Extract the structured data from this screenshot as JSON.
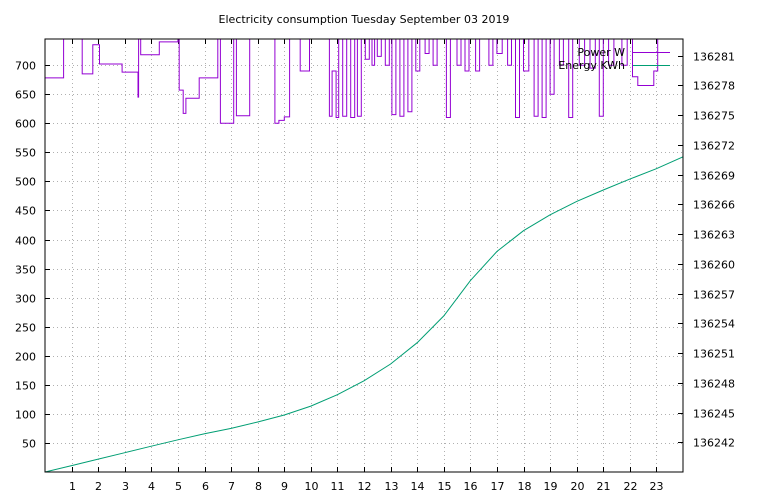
{
  "chart_data": {
    "type": "line",
    "title": "Electricity consumption Tuesday September 03 2019",
    "xlabel": "",
    "ylabel": "",
    "y2label": "",
    "xlim": [
      0,
      24
    ],
    "ylim": [
      0,
      745
    ],
    "y2lim": [
      136239.0,
      136282.69
    ],
    "xticks": [
      1,
      2,
      3,
      4,
      5,
      6,
      7,
      8,
      9,
      10,
      11,
      12,
      13,
      14,
      15,
      16,
      17,
      18,
      19,
      20,
      21,
      22,
      23
    ],
    "yticks": [
      50,
      100,
      150,
      200,
      250,
      300,
      350,
      400,
      450,
      500,
      550,
      600,
      650,
      700
    ],
    "y2ticks": [
      136242,
      136245,
      136248,
      136251,
      136254,
      136257,
      136260,
      136263,
      136266,
      136269,
      136272,
      136275,
      136278,
      136281
    ],
    "grid": true,
    "legend_position": "top-right",
    "series": [
      {
        "name": "Power W",
        "axis": "left",
        "color": "#9400d3",
        "step": true,
        "clipped_top": true,
        "points": [
          [
            0,
            678
          ],
          [
            0.7,
            760
          ],
          [
            1.4,
            685
          ],
          [
            1.8,
            735
          ],
          [
            2.05,
            702
          ],
          [
            2.9,
            688
          ],
          [
            3.5,
            645
          ],
          [
            3.52,
            760
          ],
          [
            3.6,
            718
          ],
          [
            4.3,
            740
          ],
          [
            5.0,
            760
          ],
          [
            5.05,
            657
          ],
          [
            5.2,
            617
          ],
          [
            5.3,
            643
          ],
          [
            5.8,
            678
          ],
          [
            6.5,
            760
          ],
          [
            6.6,
            600
          ],
          [
            7.1,
            760
          ],
          [
            7.2,
            613
          ],
          [
            7.7,
            760
          ],
          [
            8.65,
            600
          ],
          [
            8.8,
            605
          ],
          [
            9.0,
            611
          ],
          [
            9.2,
            760
          ],
          [
            9.6,
            690
          ],
          [
            9.95,
            760
          ],
          [
            10.7,
            612
          ],
          [
            10.8,
            690
          ],
          [
            10.95,
            610
          ],
          [
            11.05,
            760
          ],
          [
            11.2,
            612
          ],
          [
            11.35,
            760
          ],
          [
            11.5,
            610
          ],
          [
            11.65,
            760
          ],
          [
            11.75,
            612
          ],
          [
            11.9,
            760
          ],
          [
            12.05,
            710
          ],
          [
            12.2,
            760
          ],
          [
            12.3,
            700
          ],
          [
            12.4,
            760
          ],
          [
            12.5,
            715
          ],
          [
            12.65,
            760
          ],
          [
            12.8,
            700
          ],
          [
            12.95,
            760
          ],
          [
            13.05,
            615
          ],
          [
            13.2,
            760
          ],
          [
            13.35,
            612
          ],
          [
            13.5,
            760
          ],
          [
            13.65,
            620
          ],
          [
            13.8,
            760
          ],
          [
            13.95,
            690
          ],
          [
            14.1,
            760
          ],
          [
            14.3,
            720
          ],
          [
            14.45,
            760
          ],
          [
            14.6,
            700
          ],
          [
            14.75,
            760
          ],
          [
            15.1,
            610
          ],
          [
            15.25,
            760
          ],
          [
            15.5,
            700
          ],
          [
            15.65,
            760
          ],
          [
            15.8,
            690
          ],
          [
            15.95,
            760
          ],
          [
            16.2,
            690
          ],
          [
            16.35,
            760
          ],
          [
            16.7,
            700
          ],
          [
            16.85,
            760
          ],
          [
            17.0,
            720
          ],
          [
            17.2,
            760
          ],
          [
            17.4,
            700
          ],
          [
            17.55,
            760
          ],
          [
            17.7,
            610
          ],
          [
            17.85,
            760
          ],
          [
            18.0,
            690
          ],
          [
            18.2,
            760
          ],
          [
            18.4,
            612
          ],
          [
            18.55,
            760
          ],
          [
            18.7,
            610
          ],
          [
            18.85,
            760
          ],
          [
            19.0,
            650
          ],
          [
            19.15,
            760
          ],
          [
            19.35,
            700
          ],
          [
            19.5,
            760
          ],
          [
            19.7,
            610
          ],
          [
            19.85,
            760
          ],
          [
            20.1,
            700
          ],
          [
            20.3,
            760
          ],
          [
            20.5,
            695
          ],
          [
            20.7,
            760
          ],
          [
            20.85,
            612
          ],
          [
            21.0,
            760
          ],
          [
            21.2,
            700
          ],
          [
            21.4,
            760
          ],
          [
            21.7,
            700
          ],
          [
            21.9,
            760
          ],
          [
            22.1,
            680
          ],
          [
            22.3,
            665
          ],
          [
            22.9,
            690
          ],
          [
            23.05,
            760
          ],
          [
            23.3,
            760
          ]
        ]
      },
      {
        "name": "Energy KWh",
        "axis": "right",
        "color": "#009e73",
        "step": false,
        "points": [
          [
            0,
            136239.0
          ],
          [
            1,
            136239.65
          ],
          [
            2,
            136240.3
          ],
          [
            3,
            136240.95
          ],
          [
            4,
            136241.6
          ],
          [
            5,
            136242.25
          ],
          [
            6,
            136242.85
          ],
          [
            7,
            136243.4
          ],
          [
            8,
            136244.05
          ],
          [
            9,
            136244.75
          ],
          [
            10,
            136245.65
          ],
          [
            11,
            136246.8
          ],
          [
            12,
            136248.2
          ],
          [
            13,
            136249.9
          ],
          [
            14,
            136252.05
          ],
          [
            15,
            136254.75
          ],
          [
            16,
            136258.3
          ],
          [
            17,
            136261.25
          ],
          [
            18,
            136263.35
          ],
          [
            19,
            136264.95
          ],
          [
            20,
            136266.3
          ],
          [
            21,
            136267.45
          ],
          [
            22,
            136268.55
          ],
          [
            23,
            136269.6
          ],
          [
            24,
            136270.8
          ]
        ]
      }
    ]
  }
}
